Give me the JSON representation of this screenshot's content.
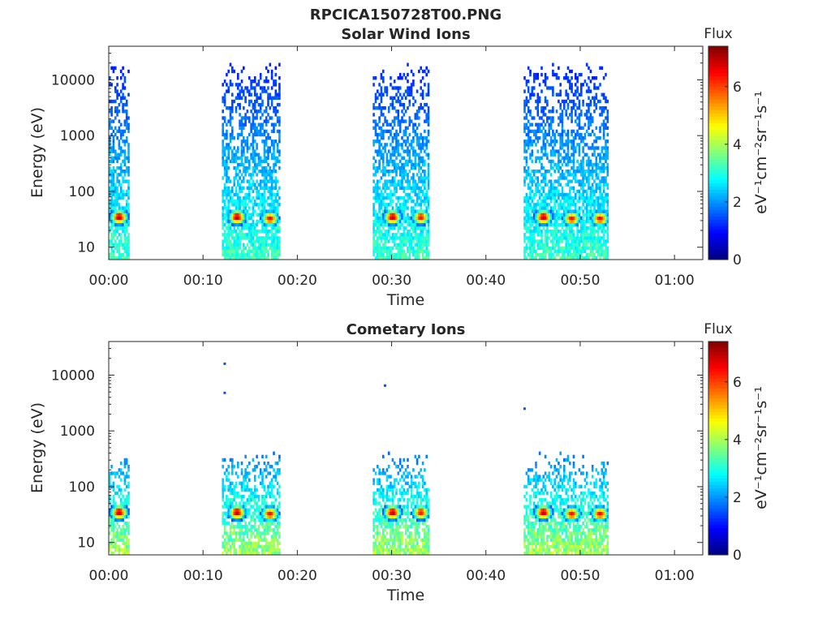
{
  "figure": {
    "title": "RPCICA150728T00.PNG"
  },
  "colormap": [
    "#00007f",
    "#0000ff",
    "#007fff",
    "#00ffff",
    "#7fff7f",
    "#ffff00",
    "#ff7f00",
    "#ff0000",
    "#7f0000"
  ],
  "chart_data": [
    {
      "type": "heatmap",
      "title": "Solar Wind Ions",
      "xlabel": "Time",
      "ylabel": "Energy (eV)",
      "x_scale": "time",
      "x_range": [
        "00:00",
        "01:03"
      ],
      "x_ticks": [
        "00:00",
        "00:10",
        "00:20",
        "00:30",
        "00:40",
        "00:50",
        "01:00"
      ],
      "y_scale": "log",
      "y_range": [
        6,
        40000
      ],
      "y_ticks": [
        "10",
        "100",
        "1000",
        "10000"
      ],
      "colorbar": {
        "label_top": "Flux",
        "label": "eV⁻¹cm⁻²sr⁻¹s⁻¹",
        "range": [
          0,
          7.4
        ],
        "ticks": [
          "0",
          "2",
          "4",
          "6"
        ]
      },
      "bursts": [
        {
          "start": "00:00",
          "end": "00:02",
          "peaks": [
            {
              "time": "00:01",
              "energy": 35,
              "flux": 7
            }
          ]
        },
        {
          "start": "00:12",
          "end": "00:18",
          "peaks": [
            {
              "time": "00:13.5",
              "energy": 35,
              "flux": 7
            },
            {
              "time": "00:17",
              "energy": 33,
              "flux": 6.5
            }
          ]
        },
        {
          "start": "00:28",
          "end": "00:34",
          "peaks": [
            {
              "time": "00:30",
              "energy": 35,
              "flux": 7
            },
            {
              "time": "00:33",
              "energy": 35,
              "flux": 6.5
            }
          ]
        },
        {
          "start": "00:44",
          "end": "00:53",
          "peaks": [
            {
              "time": "00:46",
              "energy": 35,
              "flux": 7
            },
            {
              "time": "00:49",
              "energy": 33,
              "flux": 6.5
            },
            {
              "time": "00:52",
              "energy": 33,
              "flux": 6.5
            }
          ]
        }
      ],
      "background": {
        "energy_min": 6,
        "energy_max": 15000,
        "flux_low": 1.2,
        "flux_high": 3.2
      }
    },
    {
      "type": "heatmap",
      "title": "Cometary Ions",
      "xlabel": "Time",
      "ylabel": "Energy (eV)",
      "x_scale": "time",
      "x_range": [
        "00:00",
        "01:03"
      ],
      "x_ticks": [
        "00:00",
        "00:10",
        "00:20",
        "00:30",
        "00:40",
        "00:50",
        "01:00"
      ],
      "y_scale": "log",
      "y_range": [
        6,
        40000
      ],
      "y_ticks": [
        "10",
        "100",
        "1000",
        "10000"
      ],
      "colorbar": {
        "label_top": "Flux",
        "label": "eV⁻¹cm⁻²sr⁻¹s⁻¹",
        "range": [
          0,
          7.4
        ],
        "ticks": [
          "0",
          "2",
          "4",
          "6"
        ]
      },
      "bursts": [
        {
          "start": "00:00",
          "end": "00:02",
          "peaks": [
            {
              "time": "00:01",
              "energy": 35,
              "flux": 7
            }
          ]
        },
        {
          "start": "00:12",
          "end": "00:18",
          "peaks": [
            {
              "time": "00:13.5",
              "energy": 35,
              "flux": 7
            },
            {
              "time": "00:17",
              "energy": 33,
              "flux": 6.5
            }
          ]
        },
        {
          "start": "00:28",
          "end": "00:34",
          "peaks": [
            {
              "time": "00:30",
              "energy": 35,
              "flux": 7
            },
            {
              "time": "00:33",
              "energy": 35,
              "flux": 6.5
            }
          ]
        },
        {
          "start": "00:44",
          "end": "00:53",
          "peaks": [
            {
              "time": "00:46",
              "energy": 35,
              "flux": 7
            },
            {
              "time": "00:49",
              "energy": 33,
              "flux": 6.5
            },
            {
              "time": "00:52",
              "energy": 33,
              "flux": 6.5
            }
          ]
        }
      ],
      "background": {
        "energy_min": 6,
        "energy_max": 300,
        "flux_low": 2,
        "flux_high": 4
      },
      "outliers": [
        {
          "time": "00:12.3",
          "energy": 16000,
          "flux": 1.5
        },
        {
          "time": "00:12.3",
          "energy": 4800,
          "flux": 1.5
        },
        {
          "time": "00:29.3",
          "energy": 6500,
          "flux": 1.5
        },
        {
          "time": "00:44.1",
          "energy": 2500,
          "flux": 1.5
        }
      ]
    }
  ]
}
